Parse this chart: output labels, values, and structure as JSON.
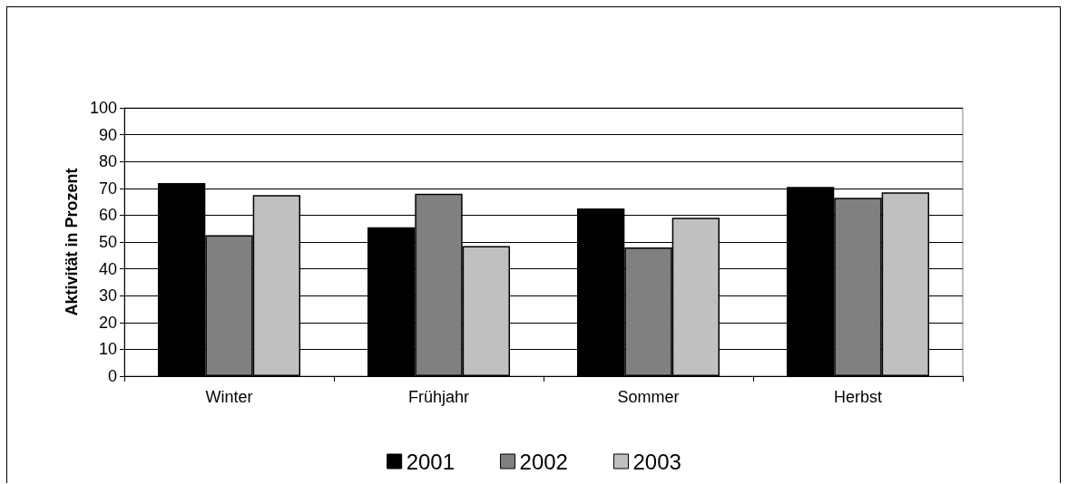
{
  "chart_data": {
    "type": "bar",
    "ylabel": "Aktivität in Prozent",
    "categories": [
      "Winter",
      "Frühjahr",
      "Sommer",
      "Herbst"
    ],
    "series": [
      {
        "name": "2001",
        "color": "#000000",
        "values": [
          72,
          55.5,
          62.5,
          70.5
        ]
      },
      {
        "name": "2002",
        "color": "#808080",
        "values": [
          52.5,
          68,
          48,
          66.5
        ]
      },
      {
        "name": "2003",
        "color": "#c0c0c0",
        "values": [
          67.5,
          48.5,
          59,
          68.5
        ]
      }
    ],
    "ylim": [
      0,
      100
    ],
    "yticks": [
      0,
      10,
      20,
      30,
      40,
      50,
      60,
      70,
      80,
      90,
      100
    ],
    "grid": "y",
    "legend": "bottom"
  }
}
